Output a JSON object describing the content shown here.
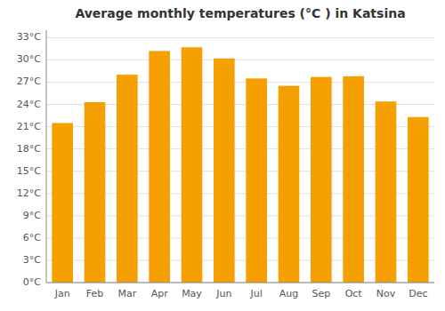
{
  "chart_data": {
    "type": "bar",
    "title": "Average monthly temperatures (°C ) in Katsina",
    "categories": [
      "Jan",
      "Feb",
      "Mar",
      "Apr",
      "May",
      "Jun",
      "Jul",
      "Aug",
      "Sep",
      "Oct",
      "Nov",
      "Dec"
    ],
    "values": [
      21.5,
      24.3,
      28.0,
      31.2,
      31.7,
      30.2,
      27.5,
      26.5,
      27.7,
      27.8,
      24.4,
      22.3
    ],
    "color": "#F5A000",
    "ylim": [
      0,
      34
    ],
    "yticks": [
      {
        "value": 0,
        "label": "0°C"
      },
      {
        "value": 3,
        "label": "3°C"
      },
      {
        "value": 6,
        "label": "6°C"
      },
      {
        "value": 9,
        "label": "9°C"
      },
      {
        "value": 12,
        "label": "12°C"
      },
      {
        "value": 15,
        "label": "15°C"
      },
      {
        "value": 18,
        "label": "18°C"
      },
      {
        "value": 21,
        "label": "21°C"
      },
      {
        "value": 24,
        "label": "24°C"
      },
      {
        "value": 27,
        "label": "27°C"
      },
      {
        "value": 30,
        "label": "30°C"
      },
      {
        "value": 33,
        "label": "33°C"
      }
    ],
    "grid": true
  }
}
